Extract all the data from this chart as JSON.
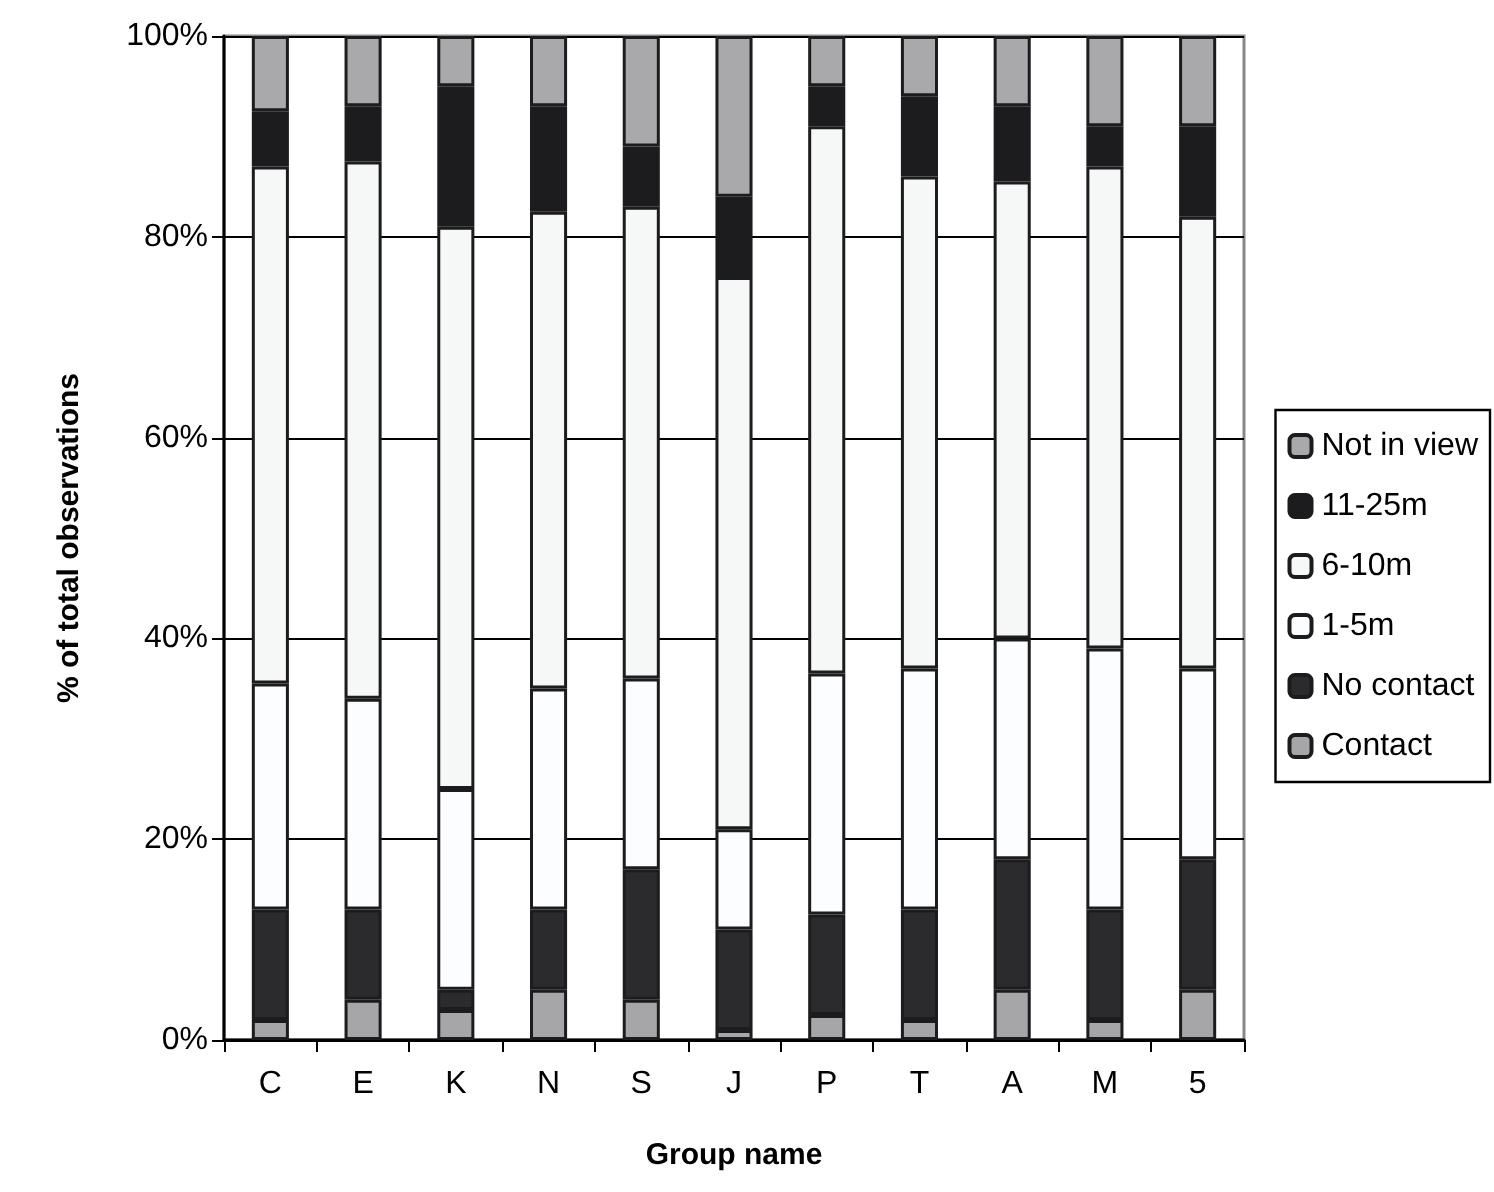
{
  "chart_data": {
    "type": "bar",
    "stacked": true,
    "xlabel": "Group name",
    "ylabel": "% of total observations",
    "categories": [
      "C",
      "E",
      "K",
      "N",
      "S",
      "J",
      "P",
      "T",
      "A",
      "M",
      "5"
    ],
    "series": [
      {
        "name": "Contact",
        "color": "#a6a6a8",
        "values": [
          2,
          4,
          3,
          5,
          4,
          1,
          2.5,
          2,
          5,
          2,
          5
        ]
      },
      {
        "name": "No contact",
        "color": "#2b2a2c",
        "values": [
          11,
          9,
          2,
          8,
          13,
          10,
          10,
          11,
          13,
          11,
          13
        ]
      },
      {
        "name": "1-5m",
        "color": "#fcfdff",
        "values": [
          22.5,
          21,
          20,
          22,
          19,
          10,
          24,
          24,
          22,
          26,
          19
        ]
      },
      {
        "name": "6-10m",
        "color": "#f6f7f7",
        "values": [
          51.5,
          53.5,
          56,
          47.5,
          47,
          55,
          54.5,
          49,
          45.5,
          48,
          45
        ]
      },
      {
        "name": "11-25m",
        "color": "#1c1b1d",
        "values": [
          5.5,
          5.5,
          14,
          10.5,
          6,
          8,
          4,
          8,
          7.5,
          4,
          9
        ]
      },
      {
        "name": "Not in view",
        "color": "#a9a9ab",
        "values": [
          7.5,
          7,
          5,
          7,
          11,
          16,
          5,
          6,
          7,
          9,
          9
        ]
      }
    ],
    "ylim": [
      0,
      100
    ],
    "yticks": [
      {
        "value": 0,
        "label": "0%"
      },
      {
        "value": 20,
        "label": "20%"
      },
      {
        "value": 40,
        "label": "40%"
      },
      {
        "value": 60,
        "label": "60%"
      },
      {
        "value": 80,
        "label": "80%"
      },
      {
        "value": 100,
        "label": "100%"
      }
    ],
    "grid": "y",
    "legend": "right"
  }
}
